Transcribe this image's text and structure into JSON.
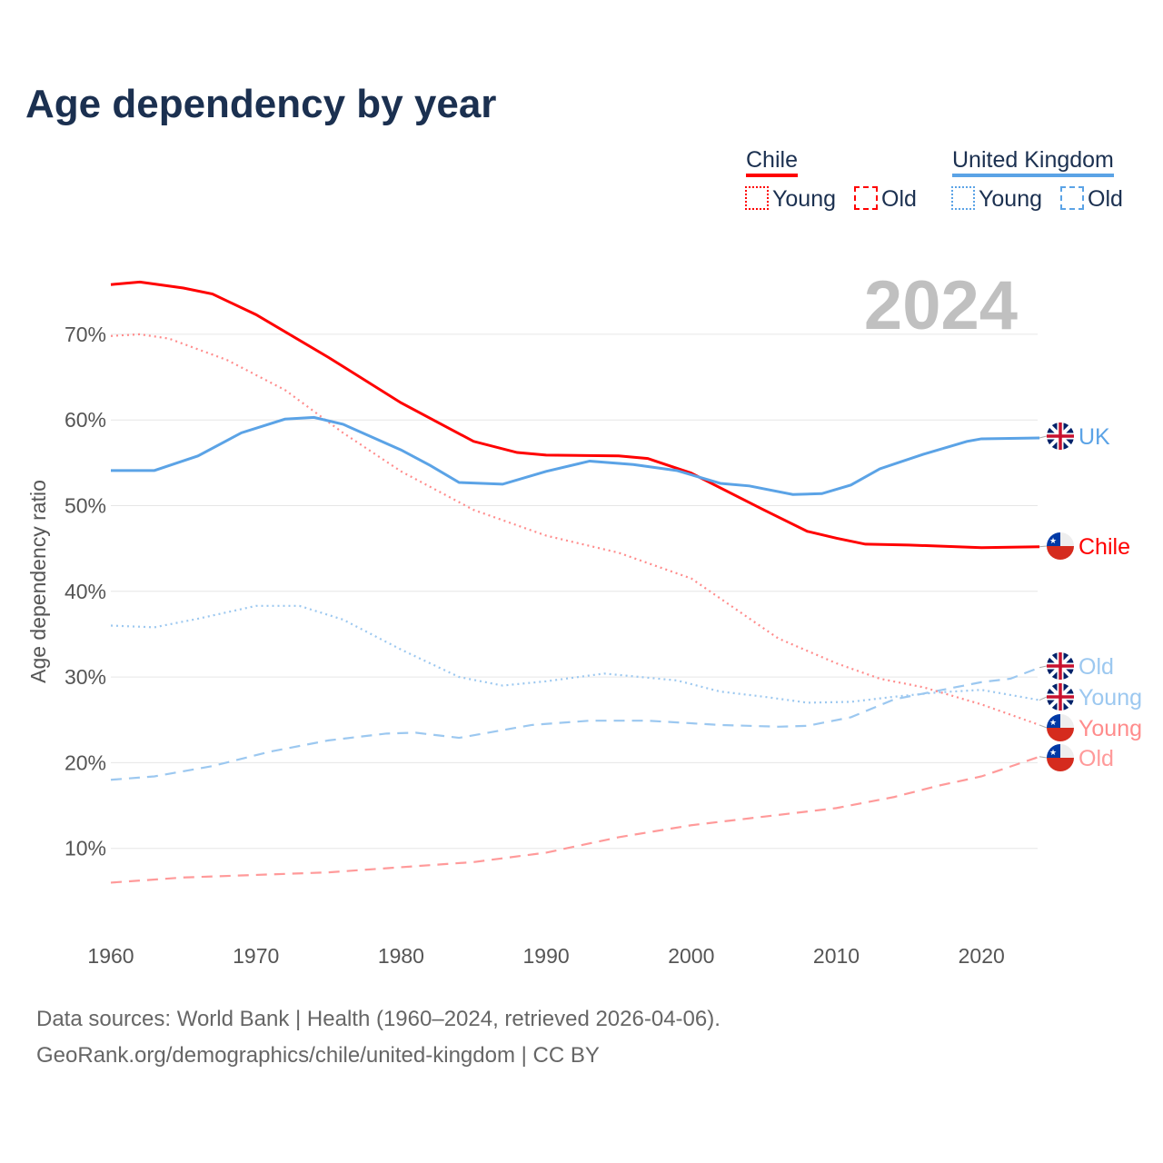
{
  "chart_data": {
    "type": "line",
    "title": "Age dependency by year",
    "ylabel": "Age dependency ratio",
    "xlabel": "",
    "year_label": "2024",
    "xlim": [
      1960,
      2024
    ],
    "ylim": [
      0,
      80
    ],
    "xticks": [
      "1960",
      "1970",
      "1980",
      "1990",
      "2000",
      "2010",
      "2020"
    ],
    "yticks": [
      "10%",
      "20%",
      "30%",
      "40%",
      "50%",
      "60%",
      "70%"
    ],
    "legend": {
      "groups": [
        {
          "name": "Chile",
          "items": [
            "Young",
            "Old"
          ]
        },
        {
          "name": "United Kingdom",
          "items": [
            "Young",
            "Old"
          ]
        }
      ]
    },
    "series": [
      {
        "name": "Chile",
        "label": "Chile",
        "color": "#ff0000",
        "dash": "",
        "x": [
          1960,
          1962,
          1965,
          1967,
          1970,
          1975,
          1980,
          1985,
          1988,
          1990,
          1995,
          1997,
          2000,
          2005,
          2008,
          2010,
          2012,
          2015,
          2020,
          2024
        ],
        "y": [
          75.8,
          76.1,
          75.4,
          74.7,
          72.3,
          67.3,
          62,
          57.5,
          56.2,
          55.9,
          55.8,
          55.5,
          53.8,
          49.5,
          47,
          46.2,
          45.5,
          45.4,
          45.1,
          45.2
        ]
      },
      {
        "name": "United Kingdom",
        "label": "UK",
        "color": "#5ba3e6",
        "dash": "",
        "x": [
          1960,
          1963,
          1966,
          1969,
          1972,
          1974,
          1976,
          1980,
          1982,
          1984,
          1987,
          1990,
          1993,
          1996,
          1999,
          2002,
          2004,
          2007,
          2009,
          2011,
          2013,
          2016,
          2019,
          2020,
          2024
        ],
        "y": [
          54.1,
          54.1,
          55.8,
          58.5,
          60.1,
          60.3,
          59.5,
          56.5,
          54.7,
          52.7,
          52.5,
          54,
          55.2,
          54.8,
          54.1,
          52.6,
          52.3,
          51.3,
          51.4,
          52.4,
          54.3,
          56,
          57.5,
          57.8,
          57.9
        ]
      },
      {
        "name": "Chile Young",
        "label": "Young",
        "color": "#ff8c8c",
        "dash": "2 4",
        "x": [
          1960,
          1962,
          1964,
          1968,
          1972,
          1976,
          1980,
          1985,
          1990,
          1995,
          2000,
          2003,
          2006,
          2010,
          2013,
          2016,
          2020,
          2024
        ],
        "y": [
          69.8,
          70,
          69.5,
          67,
          63.5,
          58.5,
          54,
          49.5,
          46.5,
          44.5,
          41.5,
          38,
          34.5,
          31.6,
          29.8,
          28.8,
          26.8,
          24.4
        ]
      },
      {
        "name": "Chile Old",
        "label": "Old",
        "color": "#ff9a9a",
        "dash": "12 8",
        "x": [
          1960,
          1965,
          1970,
          1975,
          1980,
          1985,
          1990,
          1995,
          2000,
          2005,
          2010,
          2014,
          2017,
          2020,
          2024
        ],
        "y": [
          6,
          6.6,
          6.9,
          7.2,
          7.8,
          8.4,
          9.5,
          11.3,
          12.7,
          13.7,
          14.7,
          16,
          17.3,
          18.4,
          20.7
        ]
      },
      {
        "name": "United Kingdom Young",
        "label": "Young",
        "color": "#9cc8f0",
        "dash": "2 4",
        "x": [
          1960,
          1963,
          1966,
          1970,
          1973,
          1976,
          1980,
          1984,
          1987,
          1990,
          1994,
          1999,
          2002,
          2005,
          2008,
          2011,
          2014,
          2017,
          2020,
          2024
        ],
        "y": [
          36,
          35.8,
          36.8,
          38.3,
          38.3,
          36.7,
          33.2,
          30,
          29,
          29.5,
          30.4,
          29.6,
          28.3,
          27.7,
          27,
          27.1,
          27.7,
          28.2,
          28.5,
          27.3
        ]
      },
      {
        "name": "United Kingdom Old",
        "label": "Old",
        "color": "#9cc8f0",
        "dash": "12 8",
        "x": [
          1960,
          1963,
          1967,
          1971,
          1975,
          1979,
          1981,
          1984,
          1989,
          1993,
          1997,
          2002,
          2006,
          2008,
          2011,
          2014,
          2017,
          2020,
          2022,
          2024
        ],
        "y": [
          18,
          18.4,
          19.6,
          21.3,
          22.6,
          23.4,
          23.5,
          22.9,
          24.4,
          24.9,
          24.9,
          24.4,
          24.2,
          24.3,
          25.3,
          27.4,
          28.4,
          29.4,
          29.8,
          31.1
        ]
      }
    ]
  },
  "footer": {
    "line1": "Data sources: World Bank | Health (1960–2024, retrieved 2026-04-06).",
    "line2": "GeoRank.org/demographics/chile/united-kingdom | CC BY"
  }
}
